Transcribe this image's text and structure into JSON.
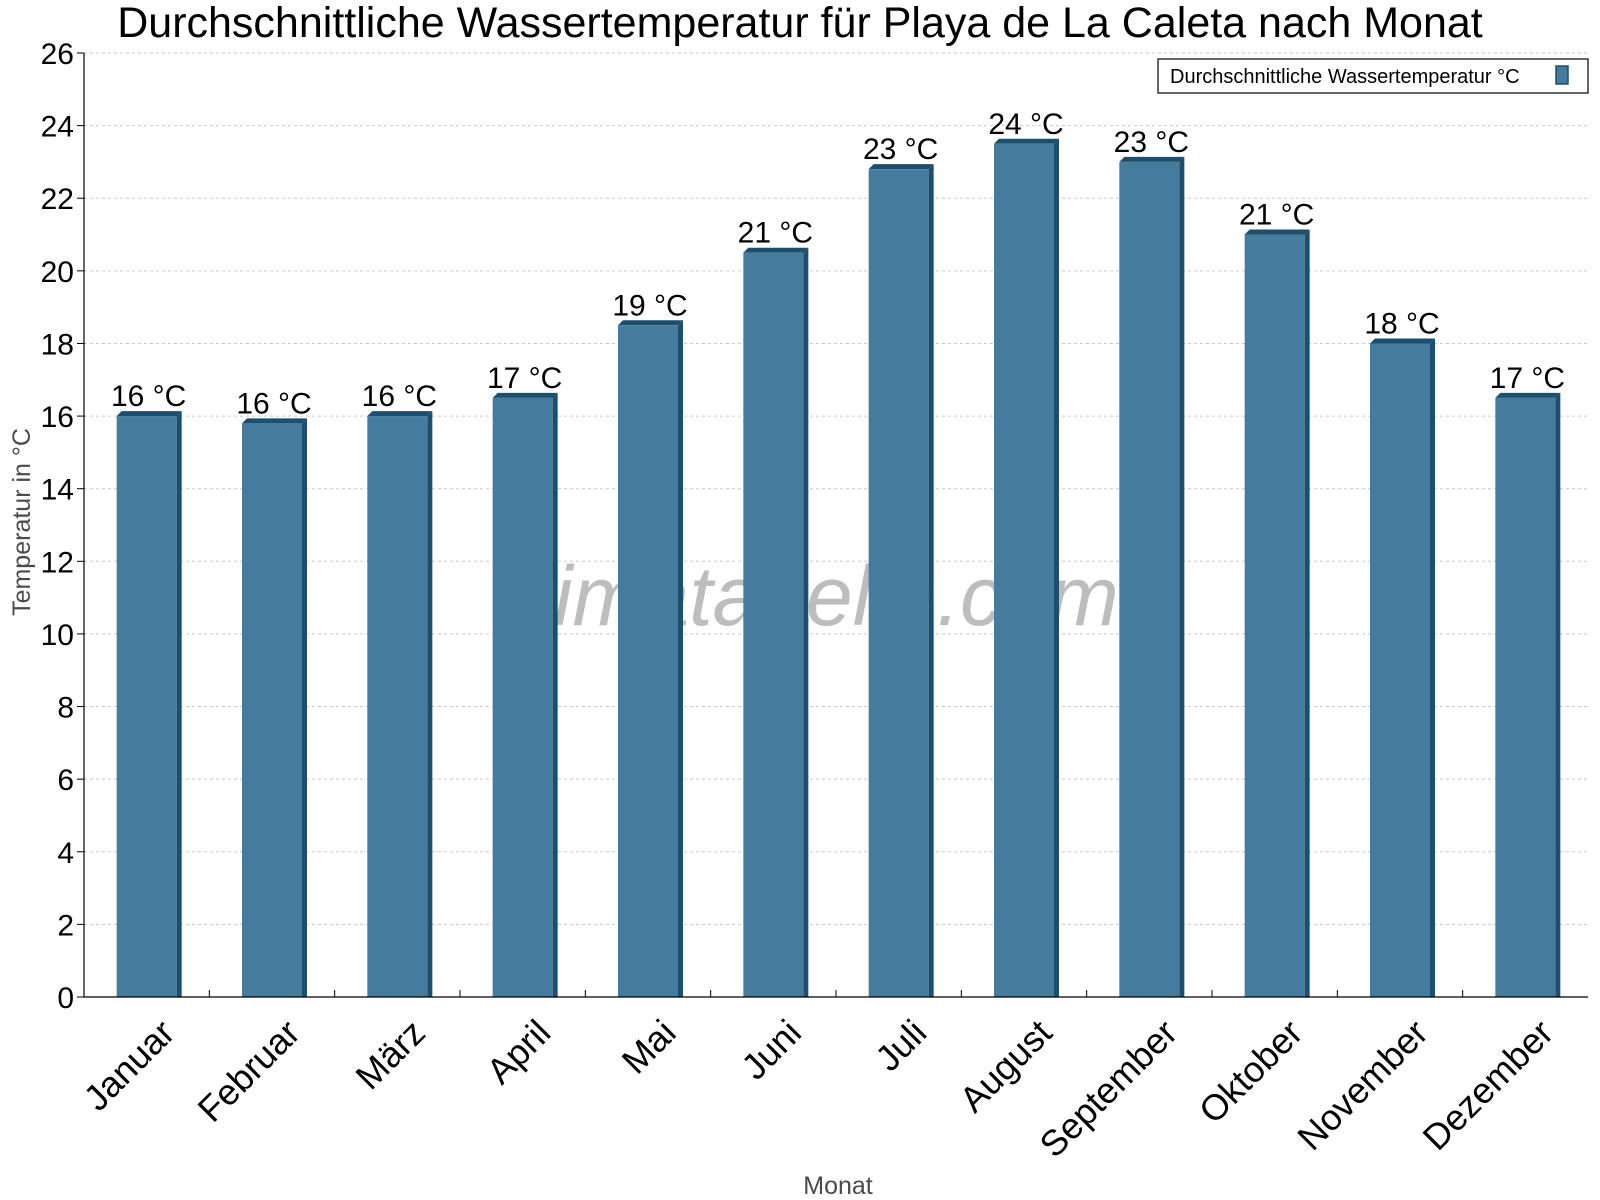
{
  "chart_data": {
    "type": "bar",
    "title": "Durchschnittliche Wassertemperatur für Playa de La Caleta nach Monat",
    "xlabel": "Monat",
    "ylabel": "Temperatur in °C",
    "ylim": [
      0,
      26
    ],
    "ytick_step": 2,
    "grid": true,
    "legend_position": "top-right",
    "categories": [
      "Januar",
      "Februar",
      "März",
      "April",
      "Mai",
      "Juni",
      "Juli",
      "August",
      "September",
      "Oktober",
      "November",
      "Dezember"
    ],
    "series": [
      {
        "name": "Durchschnittliche Wassertemperatur °C",
        "values": [
          16.0,
          15.8,
          16.0,
          16.5,
          18.5,
          20.5,
          22.8,
          23.5,
          23.0,
          21.0,
          18.0,
          16.5
        ],
        "labels": [
          "16 °C",
          "16 °C",
          "16 °C",
          "17 °C",
          "19 °C",
          "21 °C",
          "23 °C",
          "24 °C",
          "23 °C",
          "21 °C",
          "18 °C",
          "17 °C"
        ],
        "color": "#457b9d",
        "edge_color": "#1d4e6d"
      }
    ]
  },
  "watermark": "klimatabelle.com"
}
